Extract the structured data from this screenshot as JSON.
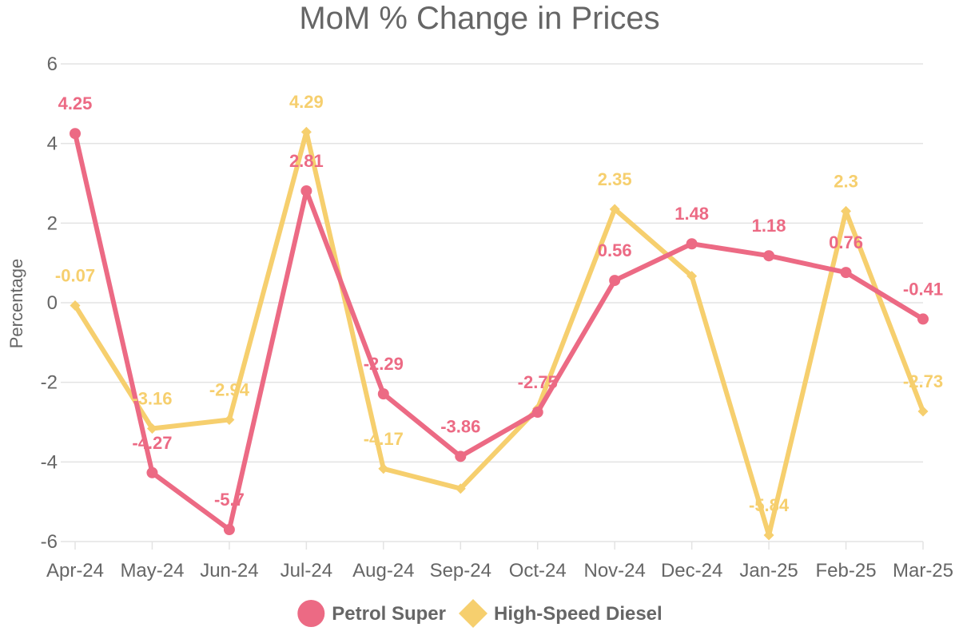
{
  "chart_data": {
    "type": "line",
    "title": "MoM % Change in Prices",
    "xlabel": "",
    "ylabel": "Percentage",
    "categories": [
      "Apr-24",
      "May-24",
      "Jun-24",
      "Jul-24",
      "Aug-24",
      "Sep-24",
      "Oct-24",
      "Nov-24",
      "Dec-24",
      "Jan-25",
      "Feb-25",
      "Mar-25"
    ],
    "ylim": [
      -6,
      6
    ],
    "yticks": [
      6,
      4,
      2,
      0,
      -2,
      -4,
      -6
    ],
    "grid": true,
    "legend_position": "bottom",
    "series": [
      {
        "name": "Petrol Super",
        "color": "#ec6a84",
        "marker": "circle",
        "values": [
          4.25,
          -4.27,
          -5.7,
          2.81,
          -2.29,
          -3.86,
          -2.75,
          0.56,
          1.48,
          1.18,
          0.76,
          -0.41
        ],
        "labels": [
          "4.25",
          "-4.27",
          "-5.7",
          "2.81",
          "-2.29",
          "-3.86",
          "-2.75",
          "0.56",
          "1.48",
          "1.18",
          "0.76",
          "-0.41"
        ]
      },
      {
        "name": "High-Speed Diesel",
        "color": "#f6cf6e",
        "marker": "diamond",
        "values": [
          -0.07,
          -3.16,
          -2.94,
          4.29,
          -4.17,
          -4.67,
          -2.66,
          2.35,
          0.67,
          -5.84,
          2.3,
          -2.73
        ],
        "labels": [
          "-0.07",
          "-3.16",
          "-2.94",
          "4.29",
          "-4.17",
          "",
          "",
          "2.35",
          "",
          "-5.84",
          "2.3",
          "-2.73"
        ]
      }
    ]
  }
}
